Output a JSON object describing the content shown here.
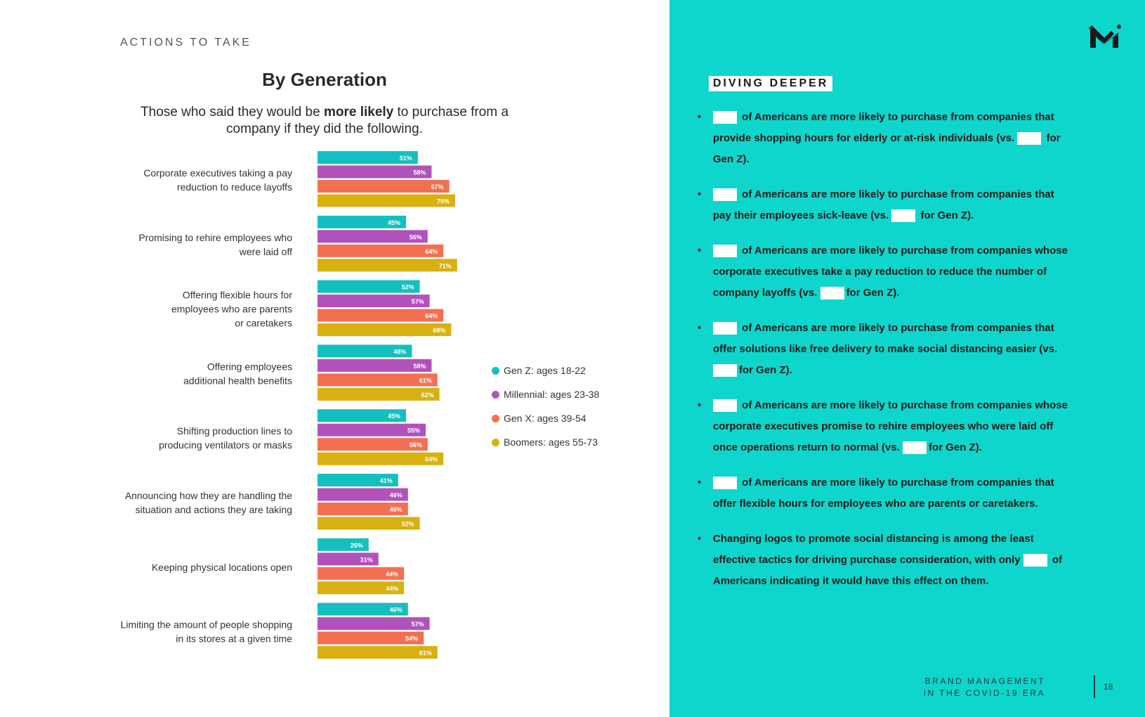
{
  "section_label": "ACTIONS TO TAKE",
  "chart_title": "By Generation",
  "subtitle": {
    "part1": "Those who said they would be ",
    "bold": "more likely",
    "part2": " to purchase from a company if they did the following."
  },
  "colors": {
    "genz": "#14bfc0",
    "millennial": "#b152bb",
    "genx": "#f36f52",
    "boomers": "#d8b111",
    "panel": "#0fd6cc"
  },
  "chart_data": {
    "type": "bar",
    "orientation": "horizontal",
    "title": "By Generation",
    "categories": [
      [
        "Corporate executives taking a pay",
        "reduction to reduce layoffs"
      ],
      [
        "Promising to rehire employees who",
        "were laid off"
      ],
      [
        "Offering flexible hours for",
        "employees who are parents",
        "or caretakers"
      ],
      [
        "Offering employees",
        "additional health benefits"
      ],
      [
        "Shifting production lines to",
        "producing ventilators or masks"
      ],
      [
        "Announcing how they are handling the",
        "situation and actions they are taking"
      ],
      [
        "Keeping physical locations open"
      ],
      [
        "Limiting the amount of people shopping",
        "in its stores at a given time"
      ]
    ],
    "series": [
      {
        "name": "Gen Z: ages 18-22",
        "color": "#14bfc0",
        "values": [
          51,
          45,
          52,
          48,
          45,
          41,
          26,
          46
        ]
      },
      {
        "name": "Millennial: ages 23-38",
        "color": "#b152bb",
        "values": [
          58,
          56,
          57,
          58,
          55,
          46,
          31,
          57
        ]
      },
      {
        "name": "Gen X: ages 39-54",
        "color": "#f36f52",
        "values": [
          67,
          64,
          64,
          61,
          56,
          46,
          44,
          54
        ]
      },
      {
        "name": "Boomers: ages 55-73",
        "color": "#d8b111",
        "values": [
          70,
          71,
          68,
          62,
          64,
          52,
          44,
          61
        ]
      }
    ],
    "value_suffix": "%",
    "xlim": [
      0,
      100
    ],
    "legend_position": "right"
  },
  "diving_deeper": {
    "label": "DIVING DEEPER",
    "bullets": [
      {
        "pre": "",
        "text": " of Americans are more likely to purchase from companies that provide shopping hours for elderly or at-risk individuals (vs. ",
        "post": " for Gen Z)."
      },
      {
        "pre": "",
        "text": " of Americans are more likely to purchase from companies that pay their employees sick-leave (vs. ",
        "post": " for Gen Z)."
      },
      {
        "pre": "",
        "text": " of Americans are more likely to purchase from companies whose corporate executives take a pay reduction to reduce the number of company layoffs (vs. ",
        "post": "for Gen Z)."
      },
      {
        "pre": "",
        "text": " of Americans are more likely to purchase from companies that offer solutions like free delivery to make social distancing easier (vs. ",
        "post": "for Gen Z)."
      },
      {
        "pre": "",
        "text": " of Americans are more likely to purchase from companies whose corporate executives promise to rehire employees who were laid off once operations return to normal (vs. ",
        "post": "for Gen Z)."
      },
      {
        "pre": "",
        "text": " of Americans are more likely to purchase from companies that offer flexible hours for employees who are parents or caretakers.",
        "post": ""
      }
    ],
    "last_bullet": {
      "text": "Changing logos to promote social distancing is among the least effective tactics for driving purchase consideration, with only ",
      "post": " of Americans indicating it would have this effect on them."
    }
  },
  "footer": {
    "line1": "BRAND MANAGEMENT",
    "line2": "IN THE COVID-19 ERA",
    "page": "18"
  }
}
